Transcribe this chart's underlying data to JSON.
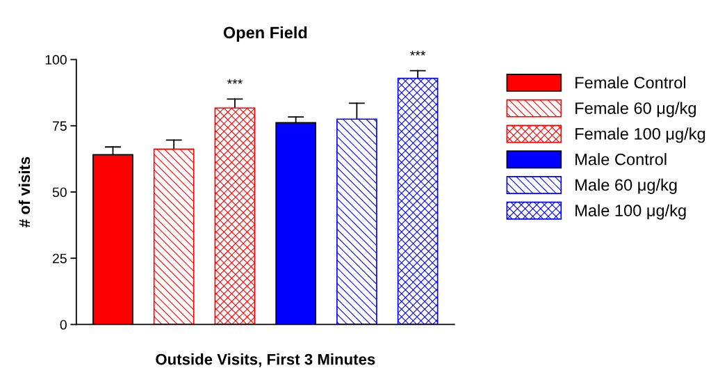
{
  "chart_data": {
    "type": "bar",
    "title": "Open Field",
    "xlabel": "Outside Visits, First 3 Minutes",
    "ylabel": "# of visits",
    "categories": [
      null,
      null,
      null,
      null,
      null,
      null
    ],
    "series": [
      {
        "name": "Female Control",
        "color": "#ff0000",
        "values": [
          64.1,
          null,
          null,
          null,
          null,
          null
        ],
        "errors": [
          [
            64.1,
            67.0
          ],
          null,
          null,
          null,
          null,
          null
        ]
      },
      {
        "name": "Female 60 μg/kg",
        "color": "#ff0000",
        "values": [
          null,
          66.2,
          null,
          null,
          null,
          null
        ],
        "errors": [
          null,
          [
            66.2,
            69.6
          ],
          null,
          null,
          null,
          null
        ]
      },
      {
        "name": "Female 100 μg/kg",
        "color": "#ff0000",
        "values": [
          null,
          null,
          81.7,
          null,
          null,
          null
        ],
        "errors": [
          null,
          null,
          [
            81.7,
            85.1
          ],
          null,
          null,
          null
        ]
      },
      {
        "name": "Male Control",
        "color": "#0000ff",
        "values": [
          null,
          null,
          null,
          76.2,
          null,
          null
        ],
        "errors": [
          null,
          null,
          null,
          [
            76.2,
            78.3
          ],
          null,
          null
        ]
      },
      {
        "name": "Male 60 μg/kg",
        "color": "#0000ff",
        "values": [
          null,
          null,
          null,
          null,
          77.5,
          null
        ],
        "errors": [
          null,
          null,
          null,
          null,
          [
            77.5,
            83.5
          ],
          null
        ]
      },
      {
        "name": "Male 100 μg/kg",
        "color": "#0000ff",
        "values": [
          null,
          null,
          null,
          null,
          null,
          92.9
        ],
        "errors": [
          null,
          null,
          null,
          null,
          null,
          [
            92.9,
            95.8
          ]
        ]
      }
    ],
    "annotations": [
      {
        "text": "***",
        "y": 85.1
      },
      {
        "text": "***",
        "y": 95.8
      }
    ],
    "ylim": [
      0,
      100
    ],
    "yticks": [
      0,
      25,
      50,
      75,
      100
    ],
    "grid": false,
    "legend": "right"
  }
}
